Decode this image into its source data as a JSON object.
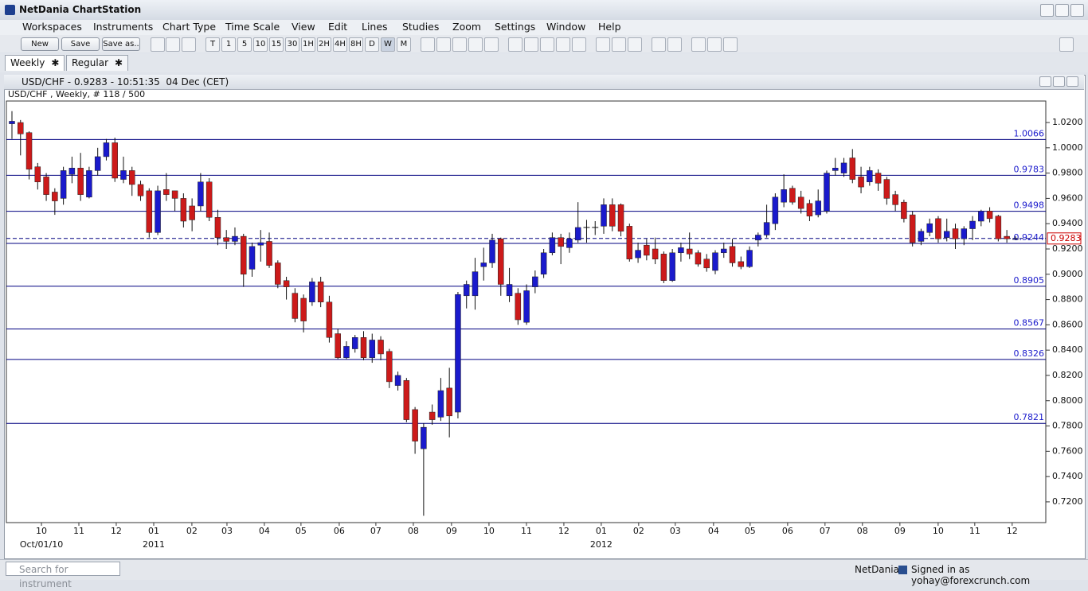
{
  "window": {
    "title": "NetDania ChartStation"
  },
  "menu": [
    "Workspaces",
    "Instruments",
    "Chart Type",
    "Time Scale",
    "View",
    "Edit",
    "Lines",
    "Studies",
    "Zoom",
    "Settings",
    "Window",
    "Help"
  ],
  "toolbar": {
    "buttons": [
      "New",
      "Save",
      "Save as.."
    ],
    "timeframes": [
      "T",
      "1",
      "5",
      "10",
      "15",
      "30",
      "1H",
      "2H",
      "4H",
      "8H",
      "D",
      "W",
      "M"
    ]
  },
  "tabs": [
    "Weekly",
    "Regular"
  ],
  "chart_window": {
    "title": "USD/CHF - 0.9283 - 10:51:35  04 Dec (CET)",
    "subtitle": "USD/CHF , Weekly, # 118 / 500"
  },
  "chart_data": {
    "type": "candlestick",
    "up_color": "#1a1acc",
    "down_color": "#cc1a1a",
    "level_color": "#000080",
    "last_color": "#cc0000",
    "open": [
      1.019,
      1.02,
      1.012,
      0.985,
      0.977,
      0.965,
      0.96,
      0.979,
      0.984,
      0.961,
      0.982,
      0.993,
      1.004,
      0.975,
      0.982,
      0.971,
      0.966,
      0.933,
      0.967,
      0.966,
      0.96,
      0.954,
      0.954,
      0.973,
      0.945,
      0.929,
      0.926,
      0.93,
      0.904,
      0.923,
      0.926,
      0.909,
      0.895,
      0.885,
      0.881,
      0.878,
      0.894,
      0.878,
      0.853,
      0.834,
      0.841,
      0.85,
      0.834,
      0.848,
      0.839,
      0.812,
      0.816,
      0.793,
      0.762,
      0.791,
      0.787,
      0.81,
      0.791,
      0.883,
      0.883,
      0.906,
      0.909,
      0.928,
      0.883,
      0.885,
      0.862,
      0.89,
      0.9,
      0.917,
      0.929,
      0.921,
      0.927,
      0.937,
      0.937,
      0.938,
      0.955,
      0.955,
      0.938,
      0.913,
      0.923,
      0.92,
      0.916,
      0.895,
      0.917,
      0.92,
      0.917,
      0.912,
      0.903,
      0.917,
      0.922,
      0.91,
      0.906,
      0.927,
      0.931,
      0.94,
      0.957,
      0.968,
      0.961,
      0.956,
      0.947,
      0.95,
      0.982,
      0.98,
      0.992,
      0.977,
      0.973,
      0.98,
      0.975,
      0.963,
      0.957,
      0.947,
      0.926,
      0.933,
      0.944,
      0.929,
      0.936,
      0.928,
      0.936,
      0.942,
      0.95,
      0.946,
      0.93,
      0.9275
    ],
    "high": [
      1.029,
      1.022,
      1.013,
      0.988,
      0.98,
      0.968,
      0.985,
      0.993,
      0.996,
      0.985,
      1.0,
      1.007,
      1.008,
      0.993,
      0.985,
      0.974,
      0.968,
      0.97,
      0.98,
      0.966,
      0.964,
      0.96,
      0.98,
      0.976,
      0.951,
      0.935,
      0.937,
      0.932,
      0.925,
      0.935,
      0.933,
      0.911,
      0.898,
      0.889,
      0.884,
      0.897,
      0.898,
      0.883,
      0.857,
      0.847,
      0.852,
      0.855,
      0.853,
      0.851,
      0.841,
      0.823,
      0.818,
      0.795,
      0.782,
      0.797,
      0.818,
      0.826,
      0.886,
      0.895,
      0.913,
      0.921,
      0.932,
      0.929,
      0.905,
      0.889,
      0.892,
      0.903,
      0.92,
      0.933,
      0.932,
      0.933,
      0.957,
      0.943,
      0.942,
      0.96,
      0.96,
      0.956,
      0.94,
      0.925,
      0.928,
      0.929,
      0.918,
      0.92,
      0.925,
      0.933,
      0.919,
      0.916,
      0.919,
      0.925,
      0.928,
      0.914,
      0.922,
      0.933,
      0.955,
      0.964,
      0.979,
      0.97,
      0.966,
      0.959,
      0.967,
      0.982,
      0.992,
      0.992,
      0.999,
      0.985,
      0.985,
      0.983,
      0.977,
      0.966,
      0.959,
      0.95,
      0.936,
      0.944,
      0.946,
      0.944,
      0.94,
      0.938,
      0.946,
      0.951,
      0.953,
      0.947,
      0.935,
      0.93
    ],
    "low": [
      1.007,
      0.994,
      0.975,
      0.967,
      0.958,
      0.947,
      0.955,
      0.972,
      0.958,
      0.96,
      0.978,
      0.99,
      0.973,
      0.972,
      0.962,
      0.958,
      0.929,
      0.931,
      0.958,
      0.95,
      0.937,
      0.934,
      0.95,
      0.942,
      0.923,
      0.92,
      0.923,
      0.89,
      0.898,
      0.91,
      0.905,
      0.889,
      0.88,
      0.862,
      0.854,
      0.875,
      0.874,
      0.846,
      0.833,
      0.833,
      0.838,
      0.832,
      0.83,
      0.832,
      0.81,
      0.808,
      0.783,
      0.758,
      0.709,
      0.781,
      0.784,
      0.771,
      0.786,
      0.873,
      0.872,
      0.895,
      0.905,
      0.883,
      0.878,
      0.86,
      0.86,
      0.885,
      0.897,
      0.915,
      0.908,
      0.917,
      0.925,
      0.925,
      0.931,
      0.932,
      0.934,
      0.93,
      0.91,
      0.909,
      0.911,
      0.908,
      0.893,
      0.894,
      0.91,
      0.912,
      0.906,
      0.902,
      0.9,
      0.913,
      0.906,
      0.904,
      0.905,
      0.922,
      0.929,
      0.935,
      0.953,
      0.955,
      0.948,
      0.942,
      0.945,
      0.948,
      0.978,
      0.977,
      0.972,
      0.964,
      0.97,
      0.966,
      0.955,
      0.95,
      0.941,
      0.922,
      0.923,
      0.93,
      0.925,
      0.926,
      0.92,
      0.923,
      0.927,
      0.938,
      0.941,
      0.926,
      0.925,
      0.927
    ],
    "close": [
      1.021,
      1.011,
      0.983,
      0.973,
      0.963,
      0.958,
      0.982,
      0.984,
      0.963,
      0.982,
      0.993,
      1.004,
      0.976,
      0.982,
      0.971,
      0.962,
      0.933,
      0.966,
      0.963,
      0.96,
      0.942,
      0.943,
      0.973,
      0.945,
      0.929,
      0.926,
      0.93,
      0.9,
      0.922,
      0.925,
      0.907,
      0.892,
      0.89,
      0.865,
      0.863,
      0.894,
      0.878,
      0.85,
      0.834,
      0.843,
      0.85,
      0.834,
      0.848,
      0.837,
      0.815,
      0.82,
      0.785,
      0.768,
      0.779,
      0.785,
      0.808,
      0.788,
      0.884,
      0.892,
      0.902,
      0.909,
      0.927,
      0.892,
      0.892,
      0.864,
      0.887,
      0.898,
      0.917,
      0.929,
      0.922,
      0.928,
      0.937,
      0.937,
      0.937,
      0.955,
      0.938,
      0.934,
      0.912,
      0.919,
      0.915,
      0.912,
      0.895,
      0.917,
      0.921,
      0.916,
      0.908,
      0.905,
      0.917,
      0.92,
      0.909,
      0.906,
      0.919,
      0.931,
      0.941,
      0.961,
      0.967,
      0.957,
      0.952,
      0.946,
      0.958,
      0.98,
      0.984,
      0.988,
      0.975,
      0.969,
      0.982,
      0.972,
      0.96,
      0.955,
      0.944,
      0.925,
      0.934,
      0.94,
      0.928,
      0.934,
      0.928,
      0.936,
      0.942,
      0.95,
      0.944,
      0.928,
      0.928,
      0.9283
    ],
    "levels": [
      1.0066,
      0.9783,
      0.9498,
      0.9244,
      0.8905,
      0.8567,
      0.8326,
      0.7821
    ],
    "last_price": 0.9283,
    "ylim": [
      0.7036,
      1.037
    ],
    "yticks": [
      {
        "value": 1.02,
        "label": "1.0200"
      },
      {
        "value": 1.0,
        "label": "1.0000"
      },
      {
        "value": 0.98,
        "label": "0.9800"
      },
      {
        "value": 0.96,
        "label": "0.9600"
      },
      {
        "value": 0.94,
        "label": "0.9400"
      },
      {
        "value": 0.92,
        "label": "0.9200"
      },
      {
        "value": 0.9,
        "label": "0.9000"
      },
      {
        "value": 0.88,
        "label": "0.8800"
      },
      {
        "value": 0.86,
        "label": "0.8600"
      },
      {
        "value": 0.84,
        "label": "0.8400"
      },
      {
        "value": 0.82,
        "label": "0.8200"
      },
      {
        "value": 0.8,
        "label": "0.8000"
      },
      {
        "value": 0.78,
        "label": "0.7800"
      },
      {
        "value": 0.76,
        "label": "0.7600"
      },
      {
        "value": 0.74,
        "label": "0.7400"
      },
      {
        "value": 0.72,
        "label": "0.7200"
      }
    ],
    "xlim": [
      -0.65,
      120.54
    ],
    "xticks": [
      {
        "value": 3.44,
        "label": "10"
      },
      {
        "value": 7.8,
        "label": "11"
      },
      {
        "value": 12.16,
        "label": "12"
      },
      {
        "value": 16.53,
        "label": "01"
      },
      {
        "value": 20.98,
        "label": "02"
      },
      {
        "value": 25.07,
        "label": "03"
      },
      {
        "value": 29.43,
        "label": "04"
      },
      {
        "value": 33.7,
        "label": "05"
      },
      {
        "value": 38.16,
        "label": "06"
      },
      {
        "value": 42.43,
        "label": "07"
      },
      {
        "value": 46.8,
        "label": "08"
      },
      {
        "value": 51.25,
        "label": "09"
      },
      {
        "value": 55.62,
        "label": "10"
      },
      {
        "value": 59.99,
        "label": "11"
      },
      {
        "value": 64.35,
        "label": "12"
      },
      {
        "value": 68.71,
        "label": "01"
      },
      {
        "value": 73.07,
        "label": "02"
      },
      {
        "value": 77.34,
        "label": "03"
      },
      {
        "value": 81.8,
        "label": "04"
      },
      {
        "value": 86.07,
        "label": "05"
      },
      {
        "value": 90.44,
        "label": "06"
      },
      {
        "value": 94.8,
        "label": "07"
      },
      {
        "value": 99.16,
        "label": "08"
      },
      {
        "value": 103.53,
        "label": "09"
      },
      {
        "value": 107.99,
        "label": "10"
      },
      {
        "value": 112.26,
        "label": "11"
      },
      {
        "value": 116.62,
        "label": "12"
      }
    ],
    "xticks_secondary": [
      {
        "value": 3.44,
        "label": "Oct/01/10"
      },
      {
        "value": 16.53,
        "label": "2011"
      },
      {
        "value": 68.71,
        "label": "2012"
      }
    ]
  },
  "status_bar": {
    "search_placeholder": "Search for instrument",
    "brand": "NetDania",
    "signed_in": "Signed in as yohay@forexcrunch.com"
  }
}
